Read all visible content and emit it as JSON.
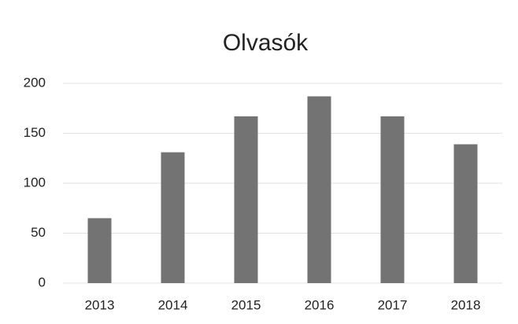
{
  "chart_data": {
    "type": "bar",
    "title": "Olvasók",
    "categories": [
      "2013",
      "2014",
      "2015",
      "2016",
      "2017",
      "2018"
    ],
    "values": [
      65,
      131,
      167,
      187,
      167,
      139
    ],
    "color": "#737373",
    "ylim": [
      0,
      200
    ],
    "yticks": [
      0,
      50,
      100,
      150,
      200
    ],
    "grid": true
  }
}
